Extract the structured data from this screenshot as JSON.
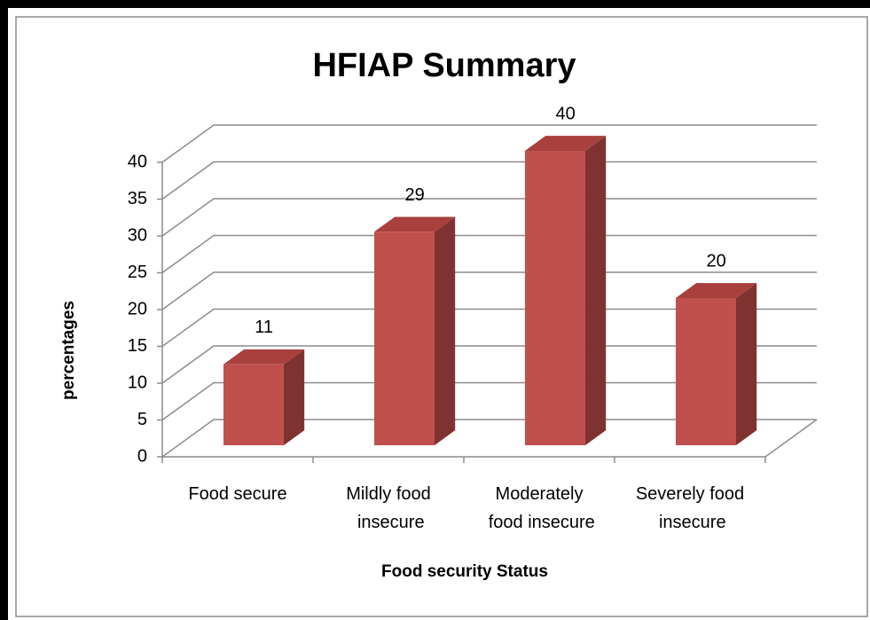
{
  "chart_data": {
    "type": "bar3d",
    "title": "HFIAP Summary",
    "x_label": "Food security Status",
    "y_label": "percentages",
    "categories": [
      "Food secure",
      "Mildly food insecure",
      "Moderately food insecure",
      "Severely food insecure"
    ],
    "values": [
      11,
      29,
      40,
      20
    ],
    "color": "#c0504d",
    "ylim": [
      0,
      40
    ],
    "yticks": [
      0,
      5,
      10,
      15,
      20,
      25,
      30,
      35,
      40
    ],
    "grid": true
  }
}
